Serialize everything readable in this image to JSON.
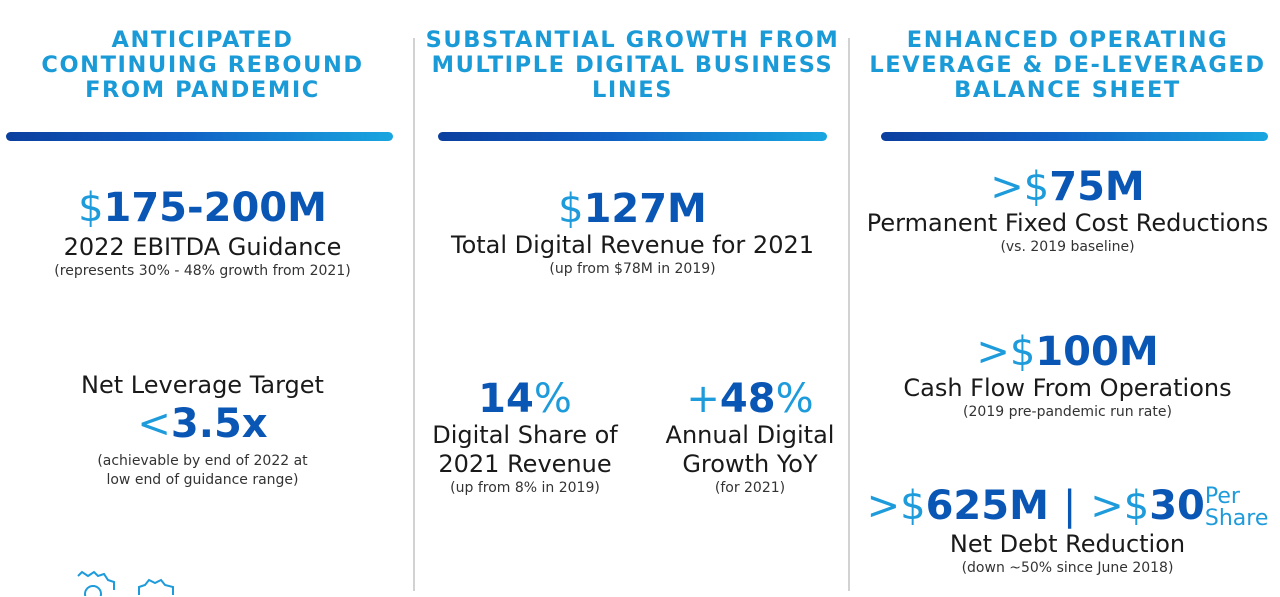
{
  "columns": [
    {
      "heading": "ANTICIPATED\nCONTINUING REBOUND\nFROM PANDEMIC",
      "ebitda": {
        "symbol": "$",
        "value": "175-200M",
        "label": "2022 EBITDA Guidance",
        "note": "(represents 30% - 48% growth from 2021)"
      },
      "leverage": {
        "title": "Net Leverage Target",
        "symbol": "<",
        "value": "3.5x",
        "note": "(achievable by end of 2022 at\nlow end of guidance range)"
      }
    },
    {
      "heading": "SUBSTANTIAL GROWTH FROM\nMULTIPLE DIGITAL BUSINESS\nLINES",
      "revenue": {
        "symbol": "$",
        "value": "127M",
        "label": "Total Digital Revenue for 2021",
        "note": "(up from $78M in 2019)"
      },
      "share": {
        "value": "14",
        "pct": "%",
        "label": "Digital Share of\n2021 Revenue",
        "note": "(up from 8% in 2019)"
      },
      "growth": {
        "symbol": "+",
        "value": "48",
        "pct": "%",
        "label": "Annual Digital\nGrowth YoY",
        "note": "(for 2021)"
      }
    },
    {
      "heading": "ENHANCED OPERATING\nLEVERAGE & DE-LEVERAGED\nBALANCE SHEET",
      "fixed_cost": {
        "symbol": ">$",
        "value": "75M",
        "label": "Permanent Fixed Cost Reductions",
        "note": "(vs. 2019 baseline)"
      },
      "cash_flow": {
        "symbol": ">$",
        "value": "100M",
        "label": "Cash Flow From Operations",
        "note": "(2019 pre-pandemic run rate)"
      },
      "net_debt": {
        "symbol1": ">$",
        "value1": "625M",
        "separator": "|",
        "symbol2": ">$",
        "value2": "30",
        "per": "Per",
        "share": "Share",
        "label": "Net Debt Reduction",
        "note": "(down ~50% since June 2018)"
      }
    }
  ],
  "icons": [
    "gear-icon",
    "gear-icon"
  ],
  "colors": {
    "heading": "#1a9ad6",
    "figure": "#0a56b5",
    "symbol": "#1e9bdb",
    "bar_start": "#0b3f9e",
    "bar_end": "#19a6e0"
  }
}
